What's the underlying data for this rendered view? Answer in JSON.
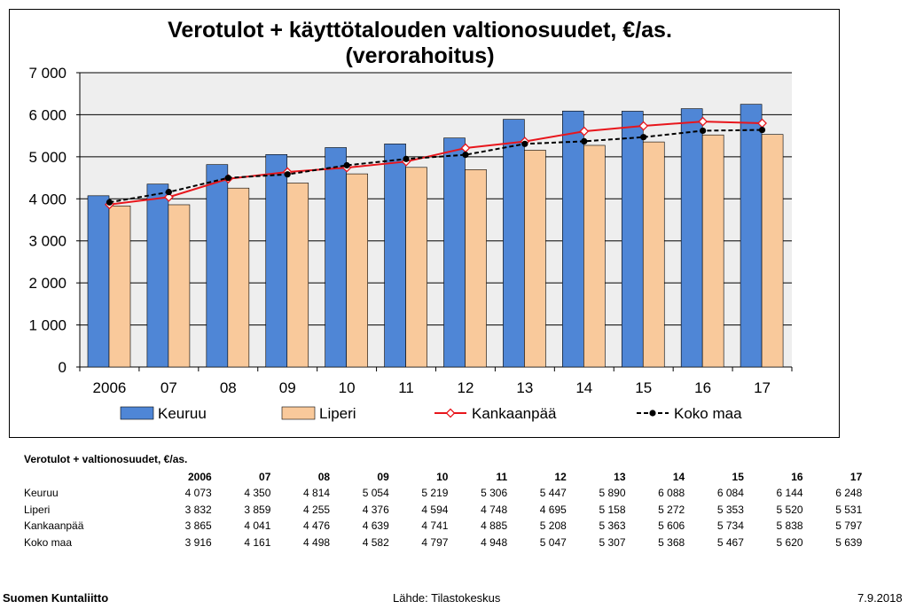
{
  "chart_data": {
    "type": "bar",
    "title_line1": "Verotulot + käyttötalouden valtionosuudet, €/as.",
    "title_line2": "(verorahoitus)",
    "categories": [
      "2006",
      "07",
      "08",
      "09",
      "10",
      "11",
      "12",
      "13",
      "14",
      "15",
      "16",
      "17"
    ],
    "ylim": [
      0,
      7000
    ],
    "yticks": [
      "0",
      "1 000",
      "2 000",
      "3 000",
      "4 000",
      "5 000",
      "6 000",
      "7 000"
    ],
    "grid": true,
    "legend_position": "bottom",
    "series": [
      {
        "name": "Keuruu",
        "kind": "bar",
        "color": "#4f86d6",
        "values": [
          4073,
          4350,
          4814,
          5054,
          5219,
          5306,
          5447,
          5890,
          6088,
          6084,
          6144,
          6248
        ]
      },
      {
        "name": "Liperi",
        "kind": "bar",
        "color": "#f9c99b",
        "values": [
          3832,
          3859,
          4255,
          4376,
          4594,
          4748,
          4695,
          5158,
          5272,
          5353,
          5520,
          5531
        ]
      },
      {
        "name": "Kankaanpää",
        "kind": "line",
        "color": "#e8161c",
        "marker": "open-diamond",
        "values": [
          3865,
          4041,
          4476,
          4639,
          4741,
          4885,
          5208,
          5363,
          5606,
          5734,
          5838,
          5797
        ]
      },
      {
        "name": "Koko maa",
        "kind": "dashed-line",
        "color": "#000000",
        "marker": "filled-circle",
        "values": [
          3916,
          4161,
          4498,
          4582,
          4797,
          4948,
          5047,
          5307,
          5368,
          5467,
          5620,
          5639
        ]
      }
    ]
  },
  "table": {
    "title": "Verotulot + valtionosuudet, €/as.",
    "headers": [
      "2006",
      "07",
      "08",
      "09",
      "10",
      "11",
      "12",
      "13",
      "14",
      "15",
      "16",
      "17"
    ],
    "rows": [
      {
        "label": "Keuruu",
        "values": [
          "4 073",
          "4 350",
          "4 814",
          "5 054",
          "5 219",
          "5 306",
          "5 447",
          "5 890",
          "6 088",
          "6 084",
          "6 144",
          "6 248"
        ]
      },
      {
        "label": "Liperi",
        "values": [
          "3 832",
          "3 859",
          "4 255",
          "4 376",
          "4 594",
          "4 748",
          "4 695",
          "5 158",
          "5 272",
          "5 353",
          "5 520",
          "5 531"
        ]
      },
      {
        "label": "Kankaanpää",
        "values": [
          "3 865",
          "4 041",
          "4 476",
          "4 639",
          "4 741",
          "4 885",
          "5 208",
          "5 363",
          "5 606",
          "5 734",
          "5 838",
          "5 797"
        ]
      },
      {
        "label": "Koko maa",
        "values": [
          "3 916",
          "4 161",
          "4 498",
          "4 582",
          "4 797",
          "4 948",
          "5 047",
          "5 307",
          "5 368",
          "5 467",
          "5 620",
          "5 639"
        ]
      }
    ]
  },
  "footer": {
    "org": "Suomen Kuntaliitto",
    "source": "Lähde: Tilastokeskus",
    "date": "7.9.2018"
  }
}
